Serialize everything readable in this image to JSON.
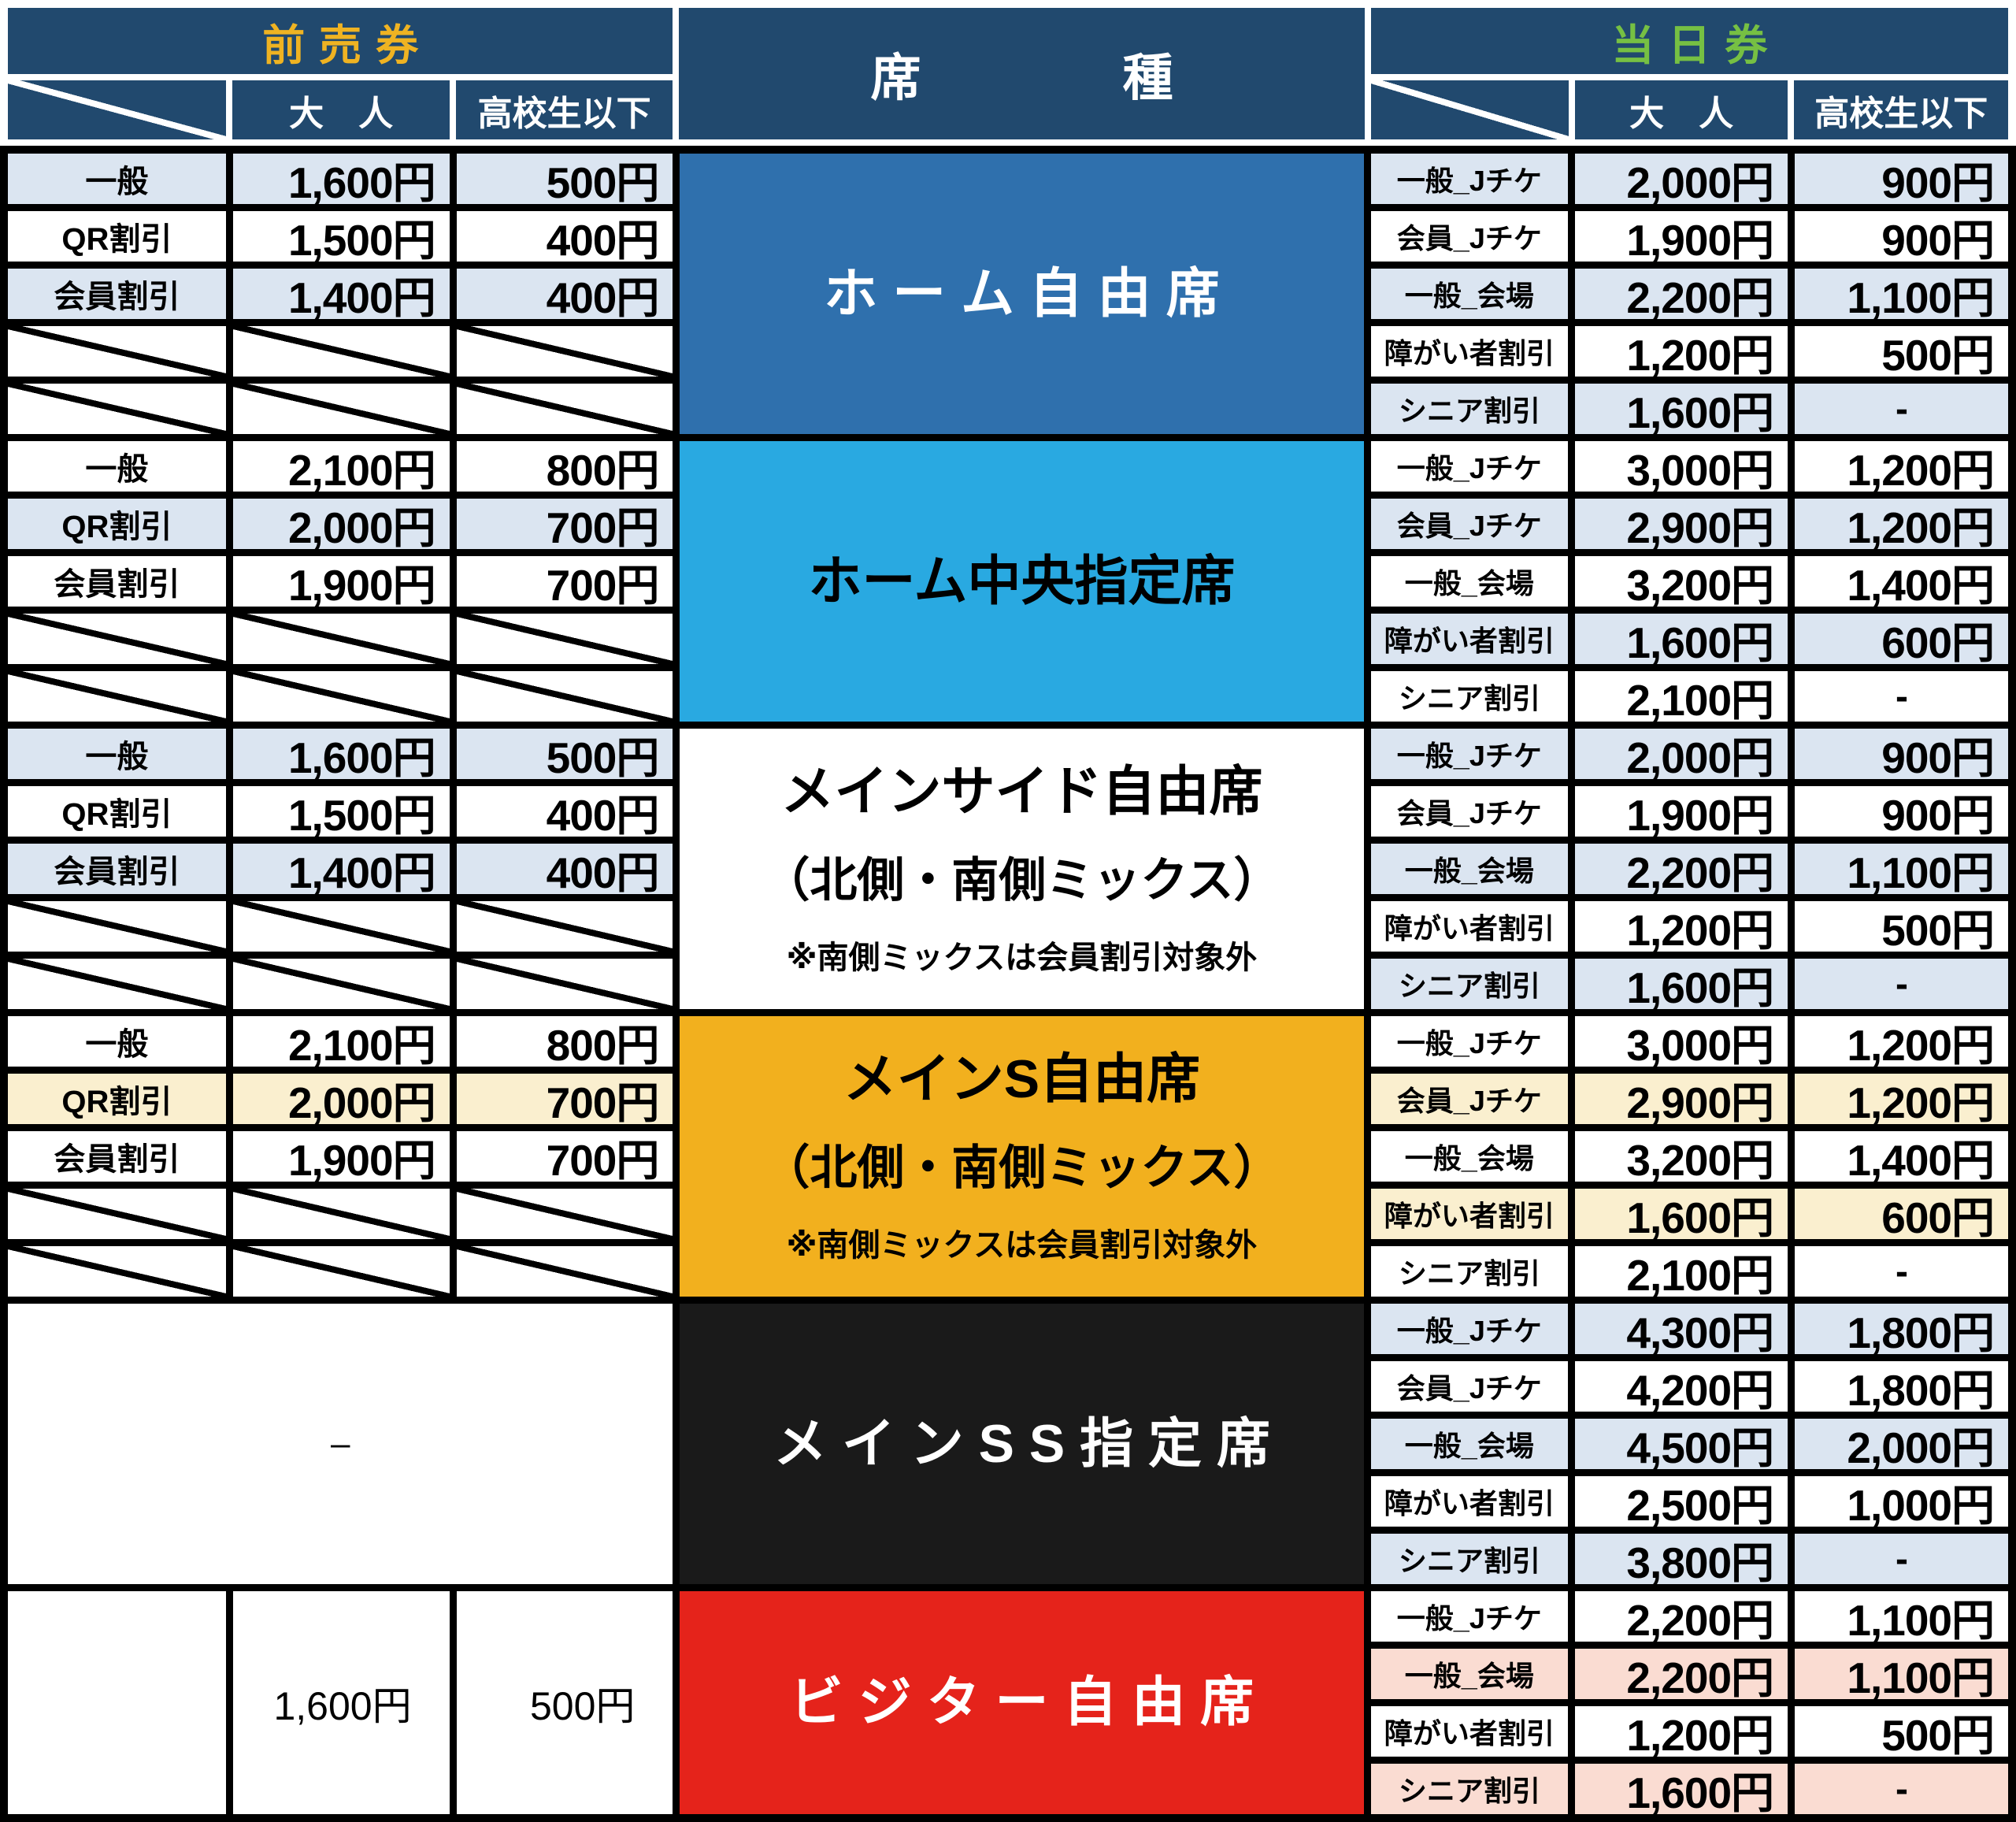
{
  "header": {
    "advance": "前売券",
    "seat_type": "席　　　　種",
    "same_day": "当日券",
    "adult": "大　人",
    "child": "高校生以下"
  },
  "colors": {
    "header_bg": "#21496E",
    "advance_text": "#EFB322",
    "same_day_text": "#76C043",
    "stripe_blue": "#DBE5F1",
    "stripe_cream": "#FAEFCF",
    "stripe_pink": "#FADCD2",
    "grid_line": "#000000",
    "seat_home_free": "#2F70AD",
    "seat_home_center": "#29A9E1",
    "seat_main_side": "#FFFFFF",
    "seat_main_s": "#F2B01E",
    "seat_main_ss": "#1A1A1A",
    "seat_visitor": "#E5231B"
  },
  "blocks": [
    {
      "seat": {
        "title": "ホ ー ム 自 由 席",
        "bg": "#2F70AD",
        "fg": "#FFFFFF"
      },
      "left_rows": [
        {
          "label": "一般",
          "adult": "1,600円",
          "child": "500円",
          "bg": "blue"
        },
        {
          "label": "QR割引",
          "adult": "1,500円",
          "child": "400円",
          "bg": "white"
        },
        {
          "label": "会員割引",
          "adult": "1,400円",
          "child": "400円",
          "bg": "blue"
        },
        {
          "slash": true
        },
        {
          "slash": true
        }
      ],
      "right_rows": [
        {
          "label": "一般_Jチケ",
          "adult": "2,000円",
          "child": "900円",
          "bg": "blue"
        },
        {
          "label": "会員_Jチケ",
          "adult": "1,900円",
          "child": "900円",
          "bg": "white"
        },
        {
          "label": "一般_会場",
          "adult": "2,200円",
          "child": "1,100円",
          "bg": "blue"
        },
        {
          "label": "障がい者割引",
          "adult": "1,200円",
          "child": "500円",
          "bg": "white"
        },
        {
          "label": "シニア割引",
          "adult": "1,600円",
          "child": "-",
          "bg": "blue"
        }
      ]
    },
    {
      "seat": {
        "title": "ホーム中央指定席",
        "bg": "#29A9E1",
        "fg": "#000000"
      },
      "left_rows": [
        {
          "label": "一般",
          "adult": "2,100円",
          "child": "800円",
          "bg": "white"
        },
        {
          "label": "QR割引",
          "adult": "2,000円",
          "child": "700円",
          "bg": "blue"
        },
        {
          "label": "会員割引",
          "adult": "1,900円",
          "child": "700円",
          "bg": "white"
        },
        {
          "slash": true
        },
        {
          "slash": true
        }
      ],
      "right_rows": [
        {
          "label": "一般_Jチケ",
          "adult": "3,000円",
          "child": "1,200円",
          "bg": "white"
        },
        {
          "label": "会員_Jチケ",
          "adult": "2,900円",
          "child": "1,200円",
          "bg": "blue"
        },
        {
          "label": "一般_会場",
          "adult": "3,200円",
          "child": "1,400円",
          "bg": "white"
        },
        {
          "label": "障がい者割引",
          "adult": "1,600円",
          "child": "600円",
          "bg": "blue"
        },
        {
          "label": "シニア割引",
          "adult": "2,100円",
          "child": "-",
          "bg": "white"
        }
      ]
    },
    {
      "seat": {
        "title": "メインサイド自由席",
        "subtitle": "（北側・南側ミックス）",
        "note": "※南側ミックスは会員割引対象外",
        "bg": "#FFFFFF",
        "fg": "#000000"
      },
      "left_rows": [
        {
          "label": "一般",
          "adult": "1,600円",
          "child": "500円",
          "bg": "blue"
        },
        {
          "label": "QR割引",
          "adult": "1,500円",
          "child": "400円",
          "bg": "white"
        },
        {
          "label": "会員割引",
          "adult": "1,400円",
          "child": "400円",
          "bg": "blue"
        },
        {
          "slash": true
        },
        {
          "slash": true
        }
      ],
      "right_rows": [
        {
          "label": "一般_Jチケ",
          "adult": "2,000円",
          "child": "900円",
          "bg": "blue"
        },
        {
          "label": "会員_Jチケ",
          "adult": "1,900円",
          "child": "900円",
          "bg": "white"
        },
        {
          "label": "一般_会場",
          "adult": "2,200円",
          "child": "1,100円",
          "bg": "blue"
        },
        {
          "label": "障がい者割引",
          "adult": "1,200円",
          "child": "500円",
          "bg": "white"
        },
        {
          "label": "シニア割引",
          "adult": "1,600円",
          "child": "-",
          "bg": "blue"
        }
      ]
    },
    {
      "seat": {
        "title": "メインS自由席",
        "subtitle": "（北側・南側ミックス）",
        "note": "※南側ミックスは会員割引対象外",
        "bg": "#F2B01E",
        "fg": "#000000"
      },
      "left_rows": [
        {
          "label": "一般",
          "adult": "2,100円",
          "child": "800円",
          "bg": "white"
        },
        {
          "label": "QR割引",
          "adult": "2,000円",
          "child": "700円",
          "bg": "cream"
        },
        {
          "label": "会員割引",
          "adult": "1,900円",
          "child": "700円",
          "bg": "white"
        },
        {
          "slash": true
        },
        {
          "slash": true
        }
      ],
      "right_rows": [
        {
          "label": "一般_Jチケ",
          "adult": "3,000円",
          "child": "1,200円",
          "bg": "white"
        },
        {
          "label": "会員_Jチケ",
          "adult": "2,900円",
          "child": "1,200円",
          "bg": "cream"
        },
        {
          "label": "一般_会場",
          "adult": "3,200円",
          "child": "1,400円",
          "bg": "white"
        },
        {
          "label": "障がい者割引",
          "adult": "1,600円",
          "child": "600円",
          "bg": "cream"
        },
        {
          "label": "シニア割引",
          "adult": "2,100円",
          "child": "-",
          "bg": "white"
        }
      ]
    },
    {
      "seat": {
        "title": "メ イ ン S S 指 定 席",
        "bg": "#1A1A1A",
        "fg": "#FFFFFF"
      },
      "left_merged": "–",
      "right_rows": [
        {
          "label": "一般_Jチケ",
          "adult": "4,300円",
          "child": "1,800円",
          "bg": "blue"
        },
        {
          "label": "会員_Jチケ",
          "adult": "4,200円",
          "child": "1,800円",
          "bg": "white"
        },
        {
          "label": "一般_会場",
          "adult": "4,500円",
          "child": "2,000円",
          "bg": "blue"
        },
        {
          "label": "障がい者割引",
          "adult": "2,500円",
          "child": "1,000円",
          "bg": "white"
        },
        {
          "label": "シニア割引",
          "adult": "3,800円",
          "child": "-",
          "bg": "blue"
        }
      ]
    },
    {
      "seat": {
        "title": "ビ ジ タ ー 自 由 席",
        "bg": "#E5231B",
        "fg": "#FFFFFF"
      },
      "left_cols": {
        "label": "",
        "adult": "1,600円",
        "child": "500円"
      },
      "right_rows": [
        {
          "label": "一般_Jチケ",
          "adult": "2,200円",
          "child": "1,100円",
          "bg": "white"
        },
        {
          "label": "一般_会場",
          "adult": "2,200円",
          "child": "1,100円",
          "bg": "pink"
        },
        {
          "label": "障がい者割引",
          "adult": "1,200円",
          "child": "500円",
          "bg": "white"
        },
        {
          "label": "シニア割引",
          "adult": "1,600円",
          "child": "-",
          "bg": "pink"
        }
      ]
    }
  ]
}
